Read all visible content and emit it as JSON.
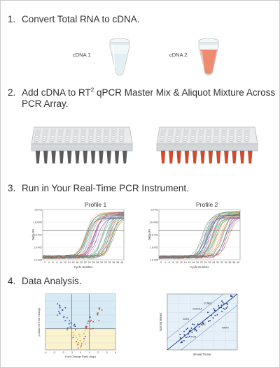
{
  "steps": [
    {
      "num": "1.",
      "text": "Convert Total RNA to cDNA."
    },
    {
      "num": "2.",
      "text_pre": "Add cDNA to RT",
      "sup": "2",
      "text_post": " qPCR Master Mix & Aliquot Mixture Across",
      "line2": "PCR Array."
    },
    {
      "num": "3.",
      "text": "Run in Your Real-Time PCR Instrument."
    },
    {
      "num": "4.",
      "text": "Data Analysis."
    }
  ],
  "tubes": [
    {
      "label": "cDNA 1",
      "fill": "#e3eff2"
    },
    {
      "label": "cDNA 2",
      "fill": "#ef8c70"
    }
  ],
  "plates": {
    "left_well_color": "#5b5b5b",
    "right_well_color": "#e2461f"
  },
  "profiles": [
    {
      "title": "Profile 1"
    },
    {
      "title": "Profile 2"
    }
  ],
  "amp_axis": {
    "ylabel": "Delta Rn",
    "xlabel": "Cycle Number",
    "yticks": [
      "1.E+01",
      "1.E+000",
      "1.E-001",
      "1.E-002",
      "1.E-003"
    ],
    "xticks": [
      "2",
      "4",
      "6",
      "8",
      "10",
      "12",
      "14",
      "16",
      "18",
      "20",
      "22",
      "24",
      "26",
      "28",
      "30",
      "32",
      "34",
      "36",
      "38",
      "40"
    ]
  },
  "volcano": {
    "ylabel": "p-Value for Fold Change",
    "xlabel": "Fold Change Ratio (log₂)",
    "xticks": [
      "-4",
      "-3",
      "-2",
      "-1",
      "0",
      "1",
      "2",
      "3",
      "4"
    ]
  },
  "scatter": {
    "ylabel": "Normal Breast",
    "xlabel": "Breast Tumor",
    "labels": [
      "CDKN1A",
      "CCNB1",
      "CDH1",
      "ESR1",
      "MMP9",
      "PGR"
    ],
    "line_color": "#1c3f8f"
  }
}
